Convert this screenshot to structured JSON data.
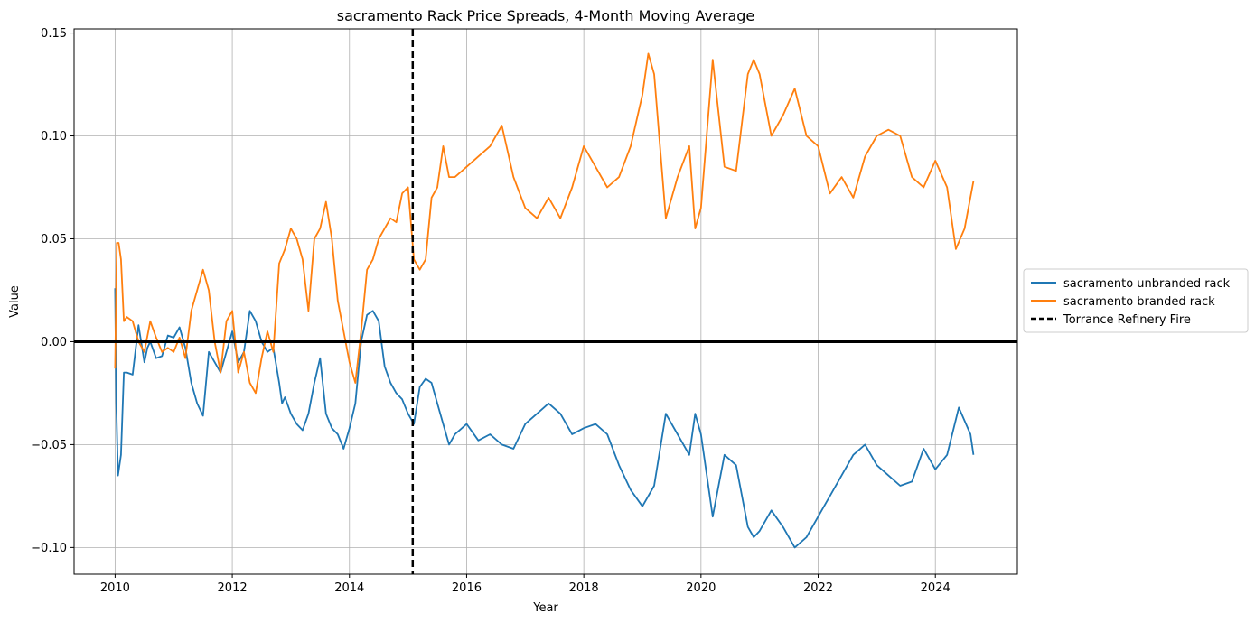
{
  "chart_data": {
    "type": "line",
    "title": "sacramento Rack Price Spreads, 4-Month Moving Average",
    "xlabel": "Year",
    "ylabel": "Value",
    "xlim": [
      2009.3,
      2025.4
    ],
    "ylim": [
      -0.113,
      0.152
    ],
    "x_ticks": [
      2010,
      2012,
      2014,
      2016,
      2018,
      2020,
      2022,
      2024
    ],
    "x_tick_labels": [
      "2010",
      "2012",
      "2014",
      "2016",
      "2018",
      "2020",
      "2022",
      "2024"
    ],
    "y_ticks": [
      -0.1,
      -0.05,
      0.0,
      0.05,
      0.1,
      0.15
    ],
    "y_tick_labels": [
      "−0.10",
      "−0.05",
      "0.00",
      "0.05",
      "0.10",
      "0.15"
    ],
    "grid": true,
    "legend_position": "outside-right",
    "reference_lines": [
      {
        "orientation": "horizontal",
        "y": 0.0,
        "color": "#000000",
        "style": "solid"
      },
      {
        "orientation": "vertical",
        "x": 2015.08,
        "color": "#000000",
        "style": "dashed",
        "label": "Torrance Refinery Fire"
      }
    ],
    "series": [
      {
        "name": "sacramento unbranded rack",
        "color": "#1f77b4",
        "x": [
          2010.0,
          2010.02,
          2010.05,
          2010.1,
          2010.15,
          2010.2,
          2010.3,
          2010.4,
          2010.5,
          2010.55,
          2010.6,
          2010.7,
          2010.8,
          2010.9,
          2011.0,
          2011.1,
          2011.2,
          2011.3,
          2011.4,
          2011.5,
          2011.6,
          2011.7,
          2011.8,
          2011.9,
          2012.0,
          2012.1,
          2012.2,
          2012.3,
          2012.4,
          2012.5,
          2012.6,
          2012.7,
          2012.8,
          2012.85,
          2012.9,
          2013.0,
          2013.1,
          2013.2,
          2013.3,
          2013.4,
          2013.5,
          2013.6,
          2013.7,
          2013.8,
          2013.9,
          2014.0,
          2014.1,
          2014.2,
          2014.3,
          2014.4,
          2014.5,
          2014.6,
          2014.7,
          2014.8,
          2014.9,
          2015.0,
          2015.1,
          2015.2,
          2015.3,
          2015.4,
          2015.5,
          2015.6,
          2015.7,
          2015.8,
          2016.0,
          2016.2,
          2016.4,
          2016.6,
          2016.8,
          2017.0,
          2017.2,
          2017.4,
          2017.6,
          2017.8,
          2018.0,
          2018.2,
          2018.4,
          2018.6,
          2018.8,
          2019.0,
          2019.2,
          2019.4,
          2019.6,
          2019.8,
          2019.9,
          2020.0,
          2020.2,
          2020.4,
          2020.6,
          2020.8,
          2020.9,
          2021.0,
          2021.2,
          2021.4,
          2021.6,
          2021.8,
          2022.0,
          2022.2,
          2022.4,
          2022.6,
          2022.8,
          2023.0,
          2023.2,
          2023.4,
          2023.6,
          2023.8,
          2024.0,
          2024.2,
          2024.4,
          2024.6,
          2024.65
        ],
        "y": [
          0.026,
          -0.03,
          -0.065,
          -0.055,
          -0.015,
          -0.015,
          -0.016,
          0.008,
          -0.01,
          -0.003,
          0.0,
          -0.008,
          -0.007,
          0.003,
          0.002,
          0.007,
          -0.003,
          -0.02,
          -0.03,
          -0.036,
          -0.005,
          -0.01,
          -0.015,
          -0.005,
          0.005,
          -0.01,
          -0.005,
          0.015,
          0.01,
          0.0,
          -0.005,
          -0.003,
          -0.02,
          -0.03,
          -0.027,
          -0.035,
          -0.04,
          -0.043,
          -0.035,
          -0.02,
          -0.008,
          -0.035,
          -0.042,
          -0.045,
          -0.052,
          -0.042,
          -0.03,
          0.0,
          0.013,
          0.015,
          0.01,
          -0.012,
          -0.02,
          -0.025,
          -0.028,
          -0.035,
          -0.04,
          -0.022,
          -0.018,
          -0.02,
          -0.03,
          -0.04,
          -0.05,
          -0.045,
          -0.04,
          -0.048,
          -0.045,
          -0.05,
          -0.052,
          -0.04,
          -0.035,
          -0.03,
          -0.035,
          -0.045,
          -0.042,
          -0.04,
          -0.045,
          -0.06,
          -0.072,
          -0.08,
          -0.07,
          -0.035,
          -0.045,
          -0.055,
          -0.035,
          -0.045,
          -0.085,
          -0.055,
          -0.06,
          -0.09,
          -0.095,
          -0.092,
          -0.082,
          -0.09,
          -0.1,
          -0.095,
          -0.085,
          -0.075,
          -0.065,
          -0.055,
          -0.05,
          -0.06,
          -0.065,
          -0.07,
          -0.068,
          -0.052,
          -0.062,
          -0.055,
          -0.032,
          -0.045,
          -0.055
        ]
      },
      {
        "name": "sacramento branded rack",
        "color": "#ff7f0e",
        "x": [
          2010.0,
          2010.03,
          2010.06,
          2010.1,
          2010.15,
          2010.2,
          2010.3,
          2010.4,
          2010.5,
          2010.6,
          2010.7,
          2010.8,
          2010.9,
          2011.0,
          2011.1,
          2011.2,
          2011.3,
          2011.4,
          2011.5,
          2011.6,
          2011.7,
          2011.8,
          2011.9,
          2012.0,
          2012.1,
          2012.2,
          2012.3,
          2012.4,
          2012.5,
          2012.6,
          2012.7,
          2012.8,
          2012.9,
          2013.0,
          2013.1,
          2013.2,
          2013.3,
          2013.4,
          2013.5,
          2013.6,
          2013.7,
          2013.8,
          2013.9,
          2014.0,
          2014.1,
          2014.2,
          2014.3,
          2014.4,
          2014.5,
          2014.6,
          2014.7,
          2014.8,
          2014.9,
          2015.0,
          2015.1,
          2015.2,
          2015.3,
          2015.4,
          2015.5,
          2015.6,
          2015.7,
          2015.8,
          2016.0,
          2016.2,
          2016.4,
          2016.6,
          2016.8,
          2017.0,
          2017.2,
          2017.4,
          2017.6,
          2017.8,
          2018.0,
          2018.2,
          2018.4,
          2018.6,
          2018.8,
          2019.0,
          2019.1,
          2019.2,
          2019.4,
          2019.6,
          2019.8,
          2019.9,
          2020.0,
          2020.2,
          2020.4,
          2020.6,
          2020.8,
          2020.9,
          2021.0,
          2021.2,
          2021.4,
          2021.6,
          2021.8,
          2022.0,
          2022.2,
          2022.4,
          2022.6,
          2022.8,
          2023.0,
          2023.2,
          2023.4,
          2023.6,
          2023.8,
          2024.0,
          2024.2,
          2024.35,
          2024.5,
          2024.65
        ],
        "y": [
          -0.013,
          0.048,
          0.048,
          0.04,
          0.01,
          0.012,
          0.01,
          0.0,
          -0.005,
          0.01,
          0.002,
          -0.005,
          -0.003,
          -0.005,
          0.002,
          -0.008,
          0.015,
          0.025,
          0.035,
          0.025,
          0.0,
          -0.015,
          0.01,
          0.015,
          -0.015,
          -0.005,
          -0.02,
          -0.025,
          -0.008,
          0.005,
          -0.005,
          0.038,
          0.045,
          0.055,
          0.05,
          0.04,
          0.015,
          0.05,
          0.055,
          0.068,
          0.05,
          0.02,
          0.005,
          -0.01,
          -0.02,
          0.005,
          0.035,
          0.04,
          0.05,
          0.055,
          0.06,
          0.058,
          0.072,
          0.075,
          0.04,
          0.035,
          0.04,
          0.07,
          0.075,
          0.095,
          0.08,
          0.08,
          0.085,
          0.09,
          0.095,
          0.105,
          0.08,
          0.065,
          0.06,
          0.07,
          0.06,
          0.075,
          0.095,
          0.085,
          0.075,
          0.08,
          0.095,
          0.12,
          0.14,
          0.13,
          0.06,
          0.08,
          0.095,
          0.055,
          0.065,
          0.137,
          0.085,
          0.083,
          0.13,
          0.137,
          0.13,
          0.1,
          0.11,
          0.123,
          0.1,
          0.095,
          0.072,
          0.08,
          0.07,
          0.09,
          0.1,
          0.103,
          0.1,
          0.08,
          0.075,
          0.088,
          0.075,
          0.045,
          0.055,
          0.078
        ]
      }
    ],
    "legend": [
      {
        "label": "sacramento unbranded rack",
        "color": "#1f77b4",
        "style": "solid"
      },
      {
        "label": "sacramento branded rack",
        "color": "#ff7f0e",
        "style": "solid"
      },
      {
        "label": "Torrance Refinery Fire",
        "color": "#000000",
        "style": "dashed"
      }
    ]
  }
}
